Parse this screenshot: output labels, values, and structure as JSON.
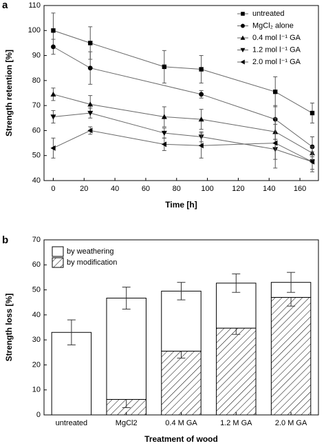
{
  "chart_data": [
    {
      "type": "line",
      "panel": "a",
      "xlabel": "Time [h]",
      "ylabel": "Strength retention [%]",
      "xlim": [
        -6,
        172
      ],
      "xticks": [
        0,
        20,
        40,
        60,
        80,
        100,
        120,
        140,
        160
      ],
      "ylim": [
        40,
        110
      ],
      "yticks": [
        40,
        50,
        60,
        70,
        80,
        90,
        100,
        110
      ],
      "legend": "upper right",
      "color": "#000000",
      "series": [
        {
          "name": "untreated",
          "marker": "square",
          "x": [
            0,
            24,
            72,
            96,
            144,
            168
          ],
          "values": [
            100,
            95,
            85.5,
            84.5,
            75.5,
            67
          ],
          "errors": [
            7,
            6.5,
            6.5,
            5.5,
            6,
            4
          ]
        },
        {
          "name": "MgCl₂ alone",
          "marker": "circle",
          "x": [
            0,
            24,
            96,
            144,
            168
          ],
          "values": [
            93.5,
            85,
            74.5,
            64.5,
            53.5
          ],
          "errors": [
            3,
            6.5,
            1.5,
            5.5,
            4
          ]
        },
        {
          "name": "0.4 mol l⁻¹ GA",
          "marker": "triangle-up",
          "x": [
            0,
            24,
            72,
            96,
            144,
            168
          ],
          "values": [
            74.5,
            70.5,
            65.5,
            64.5,
            59.5,
            51
          ],
          "errors": [
            2.5,
            3.5,
            4,
            4,
            3,
            2.5
          ]
        },
        {
          "name": "1.2 mol l⁻¹ GA",
          "marker": "triangle-down",
          "x": [
            0,
            24,
            72,
            96,
            144,
            168
          ],
          "values": [
            65.5,
            67,
            59,
            57.5,
            52.5,
            47.5
          ],
          "errors": [
            2.5,
            2,
            2,
            2,
            4,
            3
          ]
        },
        {
          "name": "2.0 mol l⁻¹ GA",
          "marker": "triangle-left",
          "x": [
            0,
            24,
            72,
            96,
            144,
            168
          ],
          "values": [
            53,
            60,
            54.5,
            54,
            55,
            47.5
          ],
          "errors": [
            4,
            1.5,
            2.5,
            5,
            10,
            4
          ]
        }
      ]
    },
    {
      "type": "stacked_bar",
      "panel": "b",
      "xlabel": "Treatment of wood",
      "ylabel": "Strength loss [%]",
      "categories": [
        "untreated",
        "MgCl2",
        "0.4 M GA",
        "1.2 M GA",
        "2.0 M GA"
      ],
      "ylim": [
        0,
        70
      ],
      "yticks": [
        0,
        10,
        20,
        30,
        40,
        50,
        60,
        70
      ],
      "legend": "upper left",
      "color": "#000000",
      "series": [
        {
          "name": "by modification",
          "fill": "hatch",
          "values": [
            0,
            6.2,
            25.5,
            34.7,
            47
          ],
          "errors": [
            null,
            3.3,
            2.8,
            2.5,
            3.5
          ]
        },
        {
          "name": "by weathering",
          "fill": "none",
          "values": [
            33,
            40.5,
            24,
            18,
            6
          ],
          "errors": [
            5,
            4.4,
            3.5,
            3.7,
            4
          ]
        }
      ]
    }
  ]
}
